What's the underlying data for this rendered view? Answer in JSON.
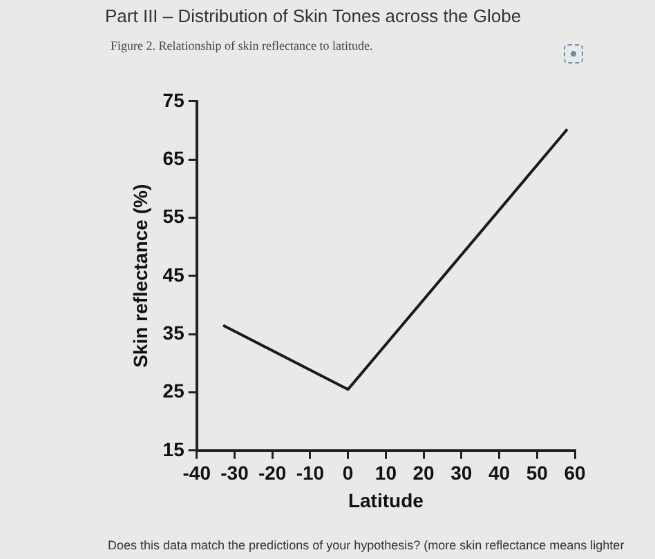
{
  "chart_data": {
    "type": "line",
    "title": "Part III – Distribution of Skin Tones across the Globe",
    "subtitle": "Figure 2. Relationship of skin reflectance to latitude.",
    "xlabel": "Latitude",
    "ylabel": "Skin reflectance (%)",
    "x": [
      -33,
      0,
      58
    ],
    "series": [
      {
        "color": "#1a1a1a",
        "values": [
          36.5,
          25.5,
          70.2
        ]
      }
    ],
    "xlim": [
      -40,
      60
    ],
    "xticks": [
      -40,
      -30,
      -20,
      -10,
      0,
      10,
      20,
      30,
      40,
      50,
      60
    ],
    "ylim": [
      15,
      75
    ],
    "yticks": [
      15,
      25,
      35,
      45,
      55,
      65,
      75
    ],
    "grid": false,
    "legend": false,
    "marker": "none",
    "line_style": "solid",
    "annotations": [
      "Does this data match the predictions of your hypothesis? (more skin reflectance means lighter"
    ]
  }
}
